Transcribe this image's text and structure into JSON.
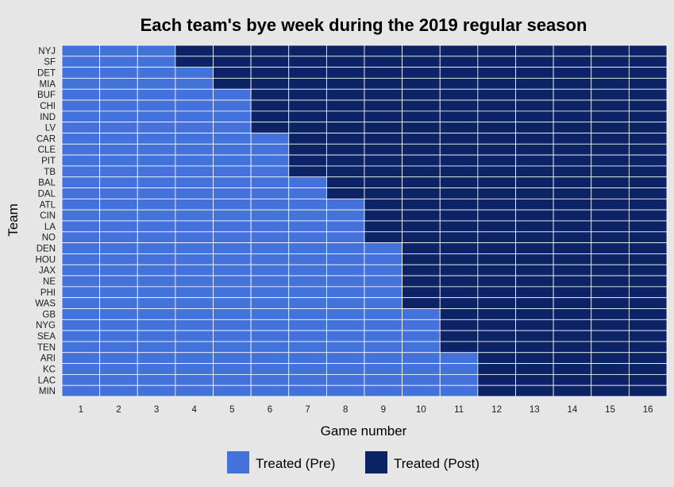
{
  "chart_data": {
    "type": "heatmap",
    "title": "Each team's bye week during the 2019 regular season",
    "xlabel": "Game number",
    "ylabel": "Team",
    "x": [
      1,
      2,
      3,
      4,
      5,
      6,
      7,
      8,
      9,
      10,
      11,
      12,
      13,
      14,
      15,
      16
    ],
    "teams": [
      "NYJ",
      "SF",
      "DET",
      "MIA",
      "BUF",
      "CHI",
      "IND",
      "LV",
      "CAR",
      "CLE",
      "PIT",
      "TB",
      "BAL",
      "DAL",
      "ATL",
      "CIN",
      "LA",
      "NO",
      "DEN",
      "HOU",
      "JAX",
      "NE",
      "PHI",
      "WAS",
      "GB",
      "NYG",
      "SEA",
      "TEN",
      "ARI",
      "KC",
      "LAC",
      "MIN"
    ],
    "first_post_game": [
      4,
      4,
      5,
      5,
      6,
      6,
      6,
      6,
      7,
      7,
      7,
      7,
      8,
      8,
      9,
      9,
      9,
      9,
      10,
      10,
      10,
      10,
      10,
      10,
      11,
      11,
      11,
      11,
      12,
      12,
      12,
      12
    ],
    "categories": [
      "Treated (Pre)",
      "Treated (Post)"
    ],
    "colors": {
      "Treated (Pre)": "#4472db",
      "Treated (Post)": "#0c2366",
      "background": "#e6e6e6",
      "gridline": "#ffffff"
    },
    "legend": {
      "position": "bottom",
      "items": [
        "Treated (Pre)",
        "Treated (Post)"
      ]
    },
    "grid": false
  }
}
